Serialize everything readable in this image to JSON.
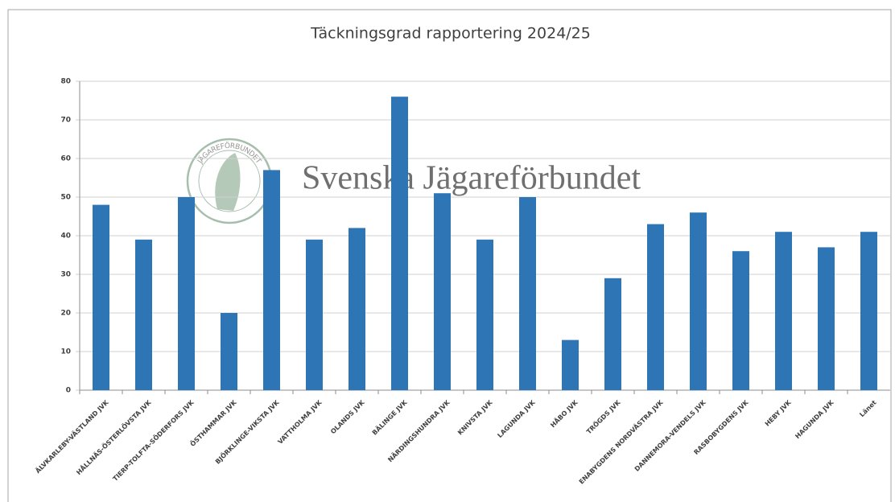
{
  "chart_data": {
    "type": "bar",
    "title": "Täckningsgrad rapportering 2024/25",
    "watermark": "Svenska Jägareförbundet",
    "logo_text": "JÄGAREFÖRBUNDET",
    "categories": [
      "ÄLVKARLEBY-VÄSTLAND JVK",
      "HÅLLNÄS-ÖSTERLÖVSTA JVK",
      "TIERP-TOLFTA-SÖDERFORS JVK",
      "ÖSTHAMMAR JVK",
      "BJÖRKLINGE-VIKSTA JVK",
      "VATTHOLMA JVK",
      "OLANDS JVK",
      "BÄLINGE JVK",
      "NÄRDINGSHUNDRA JVK",
      "KNIVSTA JVK",
      "LAGUNDA JVK",
      "HÅBO JVK",
      "TRÖGDS JVK",
      "ENABYGDENS NORDVÄSTRA JVK",
      "DANNEMORA-VENDELS JVK",
      "RASBOBYGDENS JVK",
      "HEBY JVK",
      "HAGUNDA JVK",
      "Länet"
    ],
    "values": [
      48,
      39,
      50,
      20,
      57,
      39,
      42,
      76,
      51,
      39,
      50,
      13,
      29,
      43,
      46,
      36,
      41,
      37,
      41
    ],
    "color": "#2e75b6",
    "ylim": [
      0,
      80
    ],
    "yticks": [
      0,
      10,
      20,
      30,
      40,
      50,
      60,
      70,
      80
    ],
    "grid": true
  }
}
